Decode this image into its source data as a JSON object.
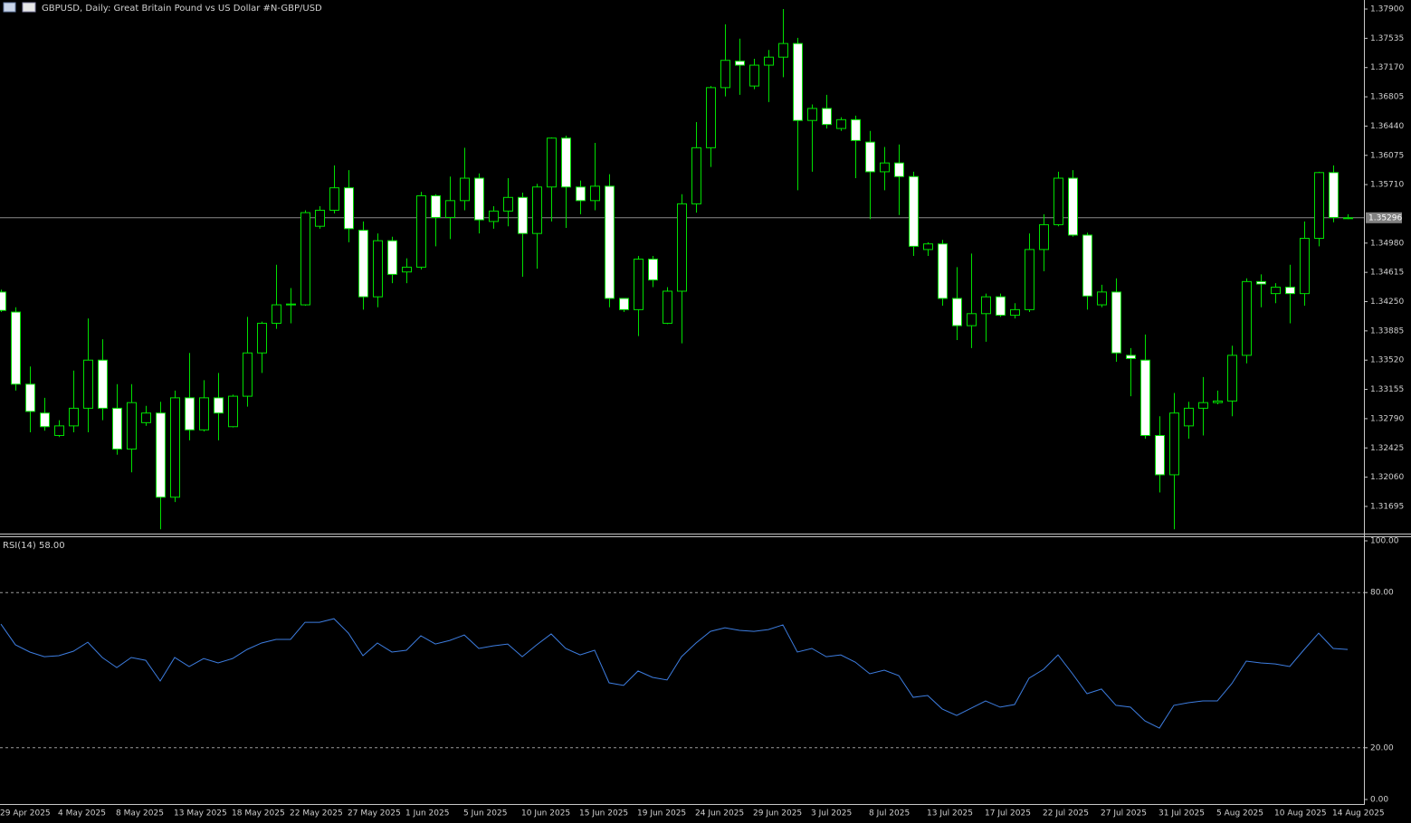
{
  "chart_data": [
    {
      "type": "candlestick",
      "title": "GBPUSD, Daily:  Great Britain Pound vs US Dollar #N-GBP/USD",
      "categories": [
        "29 Apr 2025",
        null,
        null,
        null,
        "4 May 2025",
        null,
        null,
        null,
        "8 May 2025",
        null,
        null,
        null,
        "13 May 2025",
        null,
        null,
        null,
        "18 May 2025",
        null,
        null,
        null,
        "22 May 2025",
        null,
        null,
        null,
        "27 May 2025",
        null,
        null,
        null,
        "1 Jun 2025",
        null,
        null,
        null,
        "5 Jun 2025",
        null,
        null,
        null,
        "10 Jun 2025",
        null,
        null,
        null,
        "15 Jun 2025",
        null,
        null,
        null,
        "19 Jun 2025",
        null,
        null,
        null,
        "24 Jun 2025",
        null,
        null,
        null,
        "29 Jun 2025",
        null,
        null,
        null,
        "3 Jul 2025",
        null,
        null,
        null,
        "8 Jul 2025",
        null,
        null,
        null,
        "13 Jul 2025",
        null,
        null,
        null,
        "17 Jul 2025",
        null,
        null,
        null,
        "22 Jul 2025",
        null,
        null,
        null,
        "27 Jul 2025",
        null,
        null,
        null,
        "31 Jul 2025",
        null,
        null,
        null,
        "5 Aug 2025",
        null,
        null,
        null,
        "10 Aug 2025",
        null,
        null,
        null,
        "14 Aug 2025",
        null
      ],
      "open": [
        1.3437,
        1.3412,
        1.3322,
        1.3286,
        1.3258,
        1.327,
        1.3292,
        1.3352,
        1.3292,
        1.3241,
        1.3274,
        1.3286,
        1.3181,
        1.3305,
        1.3265,
        1.3305,
        1.3269,
        1.3307,
        1.3361,
        1.3398,
        1.3421,
        1.3421,
        1.3519,
        1.3539,
        1.3567,
        1.3514,
        1.3431,
        1.3501,
        1.3462,
        1.3468,
        1.3557,
        1.353,
        1.3551,
        1.3579,
        1.3525,
        1.3538,
        1.3555,
        1.351,
        1.3568,
        1.3629,
        1.3568,
        1.3551,
        1.3569,
        1.3429,
        1.3415,
        1.3478,
        1.3398,
        1.3438,
        1.3547,
        1.3617,
        1.3692,
        1.3725,
        1.3694,
        1.372,
        1.373,
        1.3747,
        1.3651,
        1.3666,
        1.3641,
        1.3652,
        1.3624,
        1.3587,
        1.3598,
        1.3581,
        1.349,
        1.3497,
        1.3429,
        1.3395,
        1.341,
        1.3431,
        1.3408,
        1.3415,
        1.349,
        1.3521,
        1.3579,
        1.3508,
        1.3421,
        1.3437,
        1.3358,
        1.3352,
        1.3258,
        1.3209,
        1.327,
        1.3292,
        1.3299,
        1.3301,
        1.3358,
        1.345,
        1.3435,
        1.3443,
        1.3435,
        1.3504,
        1.3586,
        1.3529
      ],
      "high": [
        1.344,
        1.3418,
        1.3344,
        1.3305,
        1.3277,
        1.3339,
        1.3404,
        1.3378,
        1.3322,
        1.3322,
        1.3295,
        1.33,
        1.3314,
        1.3361,
        1.3327,
        1.3336,
        1.3309,
        1.3406,
        1.34,
        1.3471,
        1.3442,
        1.3539,
        1.3544,
        1.3595,
        1.3589,
        1.3525,
        1.351,
        1.3506,
        1.3479,
        1.3562,
        1.3559,
        1.3581,
        1.3617,
        1.3585,
        1.3544,
        1.3579,
        1.3561,
        1.3572,
        1.363,
        1.3632,
        1.3576,
        1.3623,
        1.3584,
        1.3429,
        1.3482,
        1.3482,
        1.3443,
        1.3559,
        1.3649,
        1.3694,
        1.3771,
        1.3753,
        1.3728,
        1.3739,
        1.379,
        1.3754,
        1.3671,
        1.3683,
        1.3655,
        1.3657,
        1.3638,
        1.3618,
        1.3621,
        1.3587,
        1.3499,
        1.3502,
        1.3468,
        1.3485,
        1.3435,
        1.3435,
        1.3423,
        1.351,
        1.3534,
        1.3587,
        1.3589,
        1.3511,
        1.3446,
        1.3454,
        1.3367,
        1.3384,
        1.3282,
        1.3311,
        1.33,
        1.3331,
        1.3314,
        1.337,
        1.3454,
        1.3459,
        1.3448,
        1.3471,
        1.3525,
        1.3587,
        1.3595,
        1.3534
      ],
      "low": [
        1.3412,
        1.3314,
        1.3262,
        1.3264,
        1.3256,
        1.3262,
        1.3262,
        1.3277,
        1.3234,
        1.3212,
        1.327,
        1.3141,
        1.3175,
        1.3252,
        1.3263,
        1.3252,
        1.3268,
        1.3294,
        1.3336,
        1.3391,
        1.3398,
        1.342,
        1.3516,
        1.3535,
        1.3499,
        1.3415,
        1.3418,
        1.3448,
        1.3448,
        1.3465,
        1.3494,
        1.3503,
        1.3539,
        1.351,
        1.3516,
        1.3519,
        1.3456,
        1.3466,
        1.3525,
        1.3517,
        1.3534,
        1.3539,
        1.3418,
        1.3412,
        1.3382,
        1.3443,
        1.3397,
        1.3373,
        1.3536,
        1.3593,
        1.3681,
        1.3683,
        1.369,
        1.3674,
        1.3705,
        1.3564,
        1.3587,
        1.3641,
        1.3638,
        1.3579,
        1.3528,
        1.3564,
        1.3533,
        1.3482,
        1.3482,
        1.342,
        1.3377,
        1.3367,
        1.3375,
        1.3406,
        1.3404,
        1.3412,
        1.3463,
        1.3519,
        1.3506,
        1.3415,
        1.3418,
        1.335,
        1.3307,
        1.3254,
        1.3187,
        1.3141,
        1.3254,
        1.3258,
        1.3297,
        1.3282,
        1.3348,
        1.3418,
        1.3423,
        1.3398,
        1.342,
        1.3494,
        1.3524,
        1.3528
      ],
      "close": [
        1.3414,
        1.3322,
        1.3288,
        1.3269,
        1.327,
        1.3292,
        1.3352,
        1.3292,
        1.3241,
        1.3299,
        1.3286,
        1.3181,
        1.3305,
        1.3265,
        1.3305,
        1.3286,
        1.3307,
        1.3361,
        1.3398,
        1.3421,
        1.3422,
        1.3536,
        1.3539,
        1.3567,
        1.3516,
        1.3431,
        1.3501,
        1.3459,
        1.3468,
        1.3557,
        1.353,
        1.3551,
        1.3579,
        1.3527,
        1.3538,
        1.3555,
        1.351,
        1.3568,
        1.3629,
        1.3568,
        1.3551,
        1.3569,
        1.3429,
        1.3415,
        1.3478,
        1.3452,
        1.3438,
        1.3547,
        1.3617,
        1.3692,
        1.3726,
        1.372,
        1.372,
        1.373,
        1.3747,
        1.3651,
        1.3666,
        1.3646,
        1.3652,
        1.3626,
        1.3587,
        1.3598,
        1.3581,
        1.3494,
        1.3497,
        1.3429,
        1.3395,
        1.341,
        1.3431,
        1.3408,
        1.3415,
        1.349,
        1.3521,
        1.3579,
        1.3508,
        1.3432,
        1.3437,
        1.3361,
        1.3354,
        1.3258,
        1.3209,
        1.3286,
        1.3292,
        1.3299,
        1.3301,
        1.3358,
        1.345,
        1.3447,
        1.3443,
        1.3435,
        1.3504,
        1.3586,
        1.353,
        1.35296
      ],
      "up_color": "#000000",
      "down_color": "#ffffff",
      "wick_color": "#00e000",
      "last_price": {
        "value": 1.35296,
        "label": "1.35296"
      },
      "ylim": [
        1.31356,
        1.38013
      ],
      "yticks": [
        {
          "value": 1.379,
          "label": "1.37900"
        },
        {
          "value": 1.37535,
          "label": "1.37535"
        },
        {
          "value": 1.3717,
          "label": "1.37170"
        },
        {
          "value": 1.36805,
          "label": "1.36805"
        },
        {
          "value": 1.3644,
          "label": "1.36440"
        },
        {
          "value": 1.36075,
          "label": "1.36075"
        },
        {
          "value": 1.3571,
          "label": "1.35710"
        },
        {
          "value": 1.3498,
          "label": "1.34980"
        },
        {
          "value": 1.34615,
          "label": "1.34615"
        },
        {
          "value": 1.3425,
          "label": "1.34250"
        },
        {
          "value": 1.33885,
          "label": "1.33885"
        },
        {
          "value": 1.3352,
          "label": "1.33520"
        },
        {
          "value": 1.33155,
          "label": "1.33155"
        },
        {
          "value": 1.3279,
          "label": "1.32790"
        },
        {
          "value": 1.32425,
          "label": "1.32425"
        },
        {
          "value": 1.3206,
          "label": "1.32060"
        },
        {
          "value": 1.31695,
          "label": "1.31695"
        }
      ]
    },
    {
      "type": "line",
      "title": "RSI(14) 58.00",
      "values": [
        67.8,
        59.8,
        57.0,
        55.2,
        55.6,
        57.3,
        60.8,
        54.9,
        51.0,
        54.9,
        53.8,
        45.8,
        54.9,
        51.4,
        54.5,
        52.8,
        54.5,
        58.0,
        60.5,
        61.9,
        61.9,
        68.5,
        68.5,
        69.9,
        64.3,
        55.6,
        60.5,
        57.0,
        57.7,
        63.3,
        60.1,
        61.5,
        63.6,
        58.4,
        59.4,
        60.1,
        55.2,
        59.8,
        64.0,
        58.4,
        55.9,
        57.7,
        45.1,
        44.1,
        49.7,
        47.2,
        46.2,
        55.2,
        60.5,
        65.0,
        66.4,
        65.4,
        65.0,
        65.7,
        67.5,
        57.0,
        58.4,
        55.2,
        55.9,
        53.1,
        48.6,
        50.0,
        47.9,
        39.5,
        40.2,
        35.0,
        32.5,
        35.3,
        38.1,
        35.7,
        36.7,
        46.9,
        50.3,
        55.9,
        48.6,
        40.9,
        42.7,
        36.4,
        35.7,
        30.4,
        27.6,
        36.4,
        37.4,
        38.1,
        38.1,
        44.8,
        53.5,
        52.8,
        52.4,
        51.4,
        58.0,
        64.3,
        58.4,
        58.0
      ],
      "color": "#3d7de0",
      "ylim": [
        0,
        100
      ],
      "yticks": [
        {
          "value": 100,
          "label": "100.00"
        },
        {
          "value": 80,
          "label": "80.00"
        },
        {
          "value": 20,
          "label": "20.00"
        },
        {
          "value": 0,
          "label": "0.00"
        }
      ]
    }
  ]
}
